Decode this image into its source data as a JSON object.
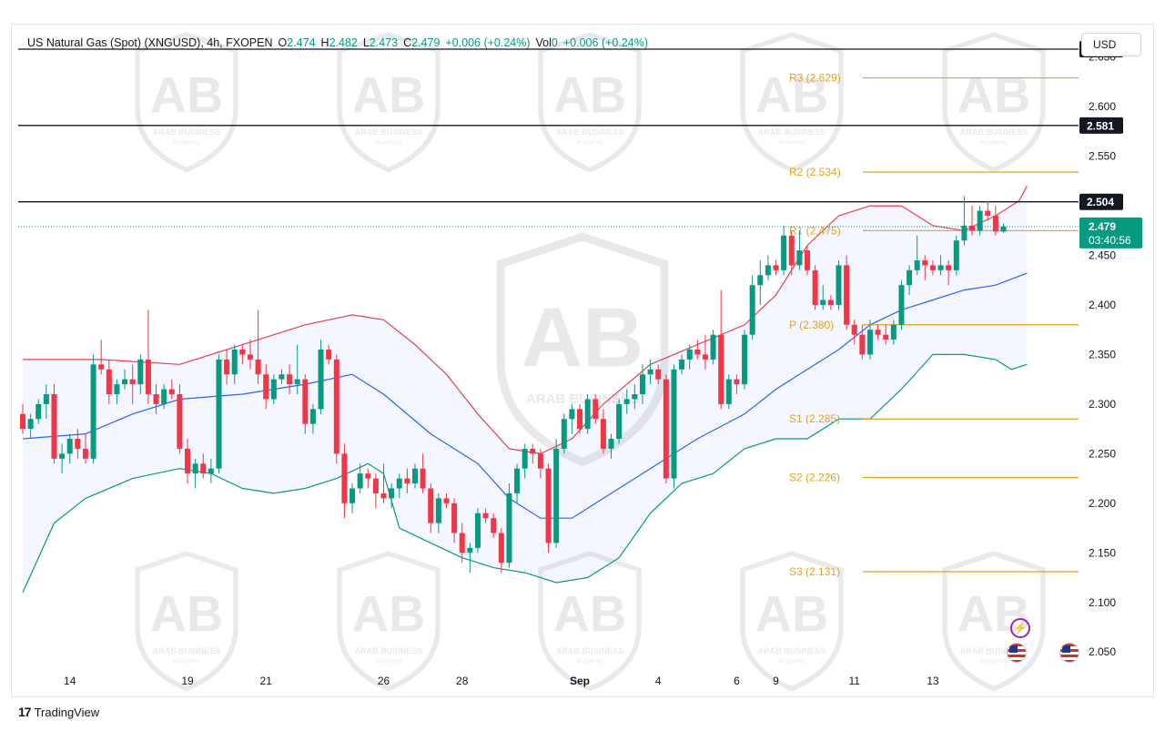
{
  "header": {
    "symbol": "US Natural Gas (Spot) (XNGUSD), 4h, FXOPEN",
    "open_label": "O",
    "open": "2.474",
    "high_label": "H",
    "high": "2.482",
    "low_label": "L",
    "low": "2.473",
    "close_label": "C",
    "close": "2.479",
    "change": "+0.006 (+0.24%)",
    "vol_label": "Vol",
    "vol": "0",
    "vol_change": "+0.006 (+0.24%)"
  },
  "currency": "USD",
  "brand": {
    "logo": "17",
    "name": "TradingView"
  },
  "colors": {
    "up": "#089981",
    "down": "#f23645",
    "bb_upper": "#e0434f",
    "bb_basis": "#2962ff",
    "bb_lower": "#089981",
    "bb_fill": "#2962ff",
    "pivot": "#e5a11f",
    "level": "#131722",
    "price_tag": "#089981"
  },
  "chart_data": {
    "type": "candlestick",
    "title": "US Natural Gas (Spot) (XNGUSD), 4h, FXOPEN",
    "xlabel": "",
    "ylabel": "",
    "ylim": [
      2.03,
      2.68
    ],
    "y_ticks": [
      "2.050",
      "2.100",
      "2.150",
      "2.200",
      "2.250",
      "2.300",
      "2.350",
      "2.400",
      "2.450",
      "2.500",
      "2.550",
      "2.600",
      "2.650"
    ],
    "x_ticks": [
      {
        "label": "14",
        "bar": 6
      },
      {
        "label": "19",
        "bar": 21
      },
      {
        "label": "21",
        "bar": 31
      },
      {
        "label": "26",
        "bar": 46
      },
      {
        "label": "28",
        "bar": 56
      },
      {
        "label": "Sep",
        "bar": 71,
        "bold": true
      },
      {
        "label": "4",
        "bar": 81
      },
      {
        "label": "6",
        "bar": 91
      },
      {
        "label": "9",
        "bar": 96
      },
      {
        "label": "11",
        "bar": 106
      },
      {
        "label": "13",
        "bar": 116
      }
    ],
    "candles": [
      [
        2.29,
        2.3,
        2.27,
        2.275
      ],
      [
        2.275,
        2.29,
        2.265,
        2.285
      ],
      [
        2.285,
        2.305,
        2.28,
        2.3
      ],
      [
        2.3,
        2.32,
        2.285,
        2.31
      ],
      [
        2.31,
        2.32,
        2.24,
        2.245
      ],
      [
        2.245,
        2.26,
        2.23,
        2.25
      ],
      [
        2.25,
        2.27,
        2.24,
        2.265
      ],
      [
        2.265,
        2.275,
        2.245,
        2.255
      ],
      [
        2.255,
        2.27,
        2.24,
        2.245
      ],
      [
        2.245,
        2.35,
        2.24,
        2.34
      ],
      [
        2.34,
        2.365,
        2.33,
        2.335
      ],
      [
        2.335,
        2.345,
        2.3,
        2.31
      ],
      [
        2.31,
        2.325,
        2.3,
        2.32
      ],
      [
        2.32,
        2.335,
        2.315,
        2.325
      ],
      [
        2.325,
        2.34,
        2.3,
        2.32
      ],
      [
        2.32,
        2.35,
        2.31,
        2.345
      ],
      [
        2.345,
        2.395,
        2.3,
        2.31
      ],
      [
        2.31,
        2.32,
        2.29,
        2.3
      ],
      [
        2.3,
        2.32,
        2.295,
        2.315
      ],
      [
        2.315,
        2.325,
        2.305,
        2.31
      ],
      [
        2.31,
        2.32,
        2.25,
        2.255
      ],
      [
        2.255,
        2.265,
        2.22,
        2.23
      ],
      [
        2.23,
        2.245,
        2.215,
        2.24
      ],
      [
        2.24,
        2.25,
        2.225,
        2.23
      ],
      [
        2.23,
        2.245,
        2.22,
        2.235
      ],
      [
        2.235,
        2.35,
        2.23,
        2.345
      ],
      [
        2.345,
        2.355,
        2.32,
        2.33
      ],
      [
        2.33,
        2.36,
        2.32,
        2.355
      ],
      [
        2.355,
        2.36,
        2.34,
        2.35
      ],
      [
        2.35,
        2.365,
        2.335,
        2.345
      ],
      [
        2.345,
        2.395,
        2.32,
        2.33
      ],
      [
        2.33,
        2.34,
        2.295,
        2.305
      ],
      [
        2.305,
        2.33,
        2.3,
        2.325
      ],
      [
        2.325,
        2.335,
        2.32,
        2.33
      ],
      [
        2.33,
        2.34,
        2.31,
        2.32
      ],
      [
        2.32,
        2.36,
        2.31,
        2.325
      ],
      [
        2.325,
        2.33,
        2.27,
        2.28
      ],
      [
        2.28,
        2.3,
        2.27,
        2.295
      ],
      [
        2.295,
        2.365,
        2.29,
        2.355
      ],
      [
        2.355,
        2.36,
        2.34,
        2.345
      ],
      [
        2.345,
        2.35,
        2.24,
        2.25
      ],
      [
        2.25,
        2.26,
        2.185,
        2.2
      ],
      [
        2.2,
        2.22,
        2.19,
        2.215
      ],
      [
        2.215,
        2.24,
        2.21,
        2.23
      ],
      [
        2.23,
        2.235,
        2.215,
        2.225
      ],
      [
        2.225,
        2.23,
        2.195,
        2.21
      ],
      [
        2.21,
        2.24,
        2.2,
        2.205
      ],
      [
        2.205,
        2.22,
        2.195,
        2.215
      ],
      [
        2.215,
        2.23,
        2.205,
        2.225
      ],
      [
        2.225,
        2.235,
        2.21,
        2.22
      ],
      [
        2.22,
        2.24,
        2.215,
        2.235
      ],
      [
        2.235,
        2.25,
        2.21,
        2.215
      ],
      [
        2.215,
        2.22,
        2.17,
        2.18
      ],
      [
        2.18,
        2.21,
        2.17,
        2.205
      ],
      [
        2.205,
        2.21,
        2.195,
        2.2
      ],
      [
        2.2,
        2.205,
        2.16,
        2.17
      ],
      [
        2.17,
        2.18,
        2.14,
        2.15
      ],
      [
        2.15,
        2.16,
        2.13,
        2.155
      ],
      [
        2.155,
        2.195,
        2.15,
        2.19
      ],
      [
        2.19,
        2.195,
        2.18,
        2.185
      ],
      [
        2.185,
        2.19,
        2.165,
        2.17
      ],
      [
        2.17,
        2.175,
        2.13,
        2.14
      ],
      [
        2.14,
        2.22,
        2.135,
        2.21
      ],
      [
        2.21,
        2.24,
        2.2,
        2.235
      ],
      [
        2.235,
        2.26,
        2.225,
        2.255
      ],
      [
        2.255,
        2.26,
        2.24,
        2.25
      ],
      [
        2.25,
        2.255,
        2.225,
        2.235
      ],
      [
        2.235,
        2.24,
        2.15,
        2.16
      ],
      [
        2.16,
        2.265,
        2.155,
        2.255
      ],
      [
        2.255,
        2.29,
        2.25,
        2.285
      ],
      [
        2.285,
        2.3,
        2.27,
        2.295
      ],
      [
        2.295,
        2.3,
        2.27,
        2.275
      ],
      [
        2.275,
        2.31,
        2.27,
        2.305
      ],
      [
        2.305,
        2.31,
        2.28,
        2.285
      ],
      [
        2.285,
        2.295,
        2.25,
        2.255
      ],
      [
        2.255,
        2.27,
        2.245,
        2.265
      ],
      [
        2.265,
        2.305,
        2.26,
        2.3
      ],
      [
        2.3,
        2.315,
        2.29,
        2.305
      ],
      [
        2.305,
        2.32,
        2.295,
        2.31
      ],
      [
        2.31,
        2.34,
        2.3,
        2.33
      ],
      [
        2.33,
        2.345,
        2.32,
        2.335
      ],
      [
        2.335,
        2.34,
        2.32,
        2.325
      ],
      [
        2.325,
        2.33,
        2.22,
        2.225
      ],
      [
        2.225,
        2.34,
        2.215,
        2.335
      ],
      [
        2.335,
        2.35,
        2.33,
        2.345
      ],
      [
        2.345,
        2.36,
        2.335,
        2.355
      ],
      [
        2.355,
        2.365,
        2.345,
        2.35
      ],
      [
        2.35,
        2.37,
        2.335,
        2.345
      ],
      [
        2.345,
        2.375,
        2.34,
        2.37
      ],
      [
        2.37,
        2.415,
        2.295,
        2.3
      ],
      [
        2.3,
        2.33,
        2.295,
        2.325
      ],
      [
        2.325,
        2.33,
        2.31,
        2.32
      ],
      [
        2.32,
        2.375,
        2.315,
        2.37
      ],
      [
        2.37,
        2.43,
        2.365,
        2.42
      ],
      [
        2.42,
        2.445,
        2.4,
        2.43
      ],
      [
        2.43,
        2.45,
        2.425,
        2.44
      ],
      [
        2.44,
        2.445,
        2.43,
        2.435
      ],
      [
        2.435,
        2.48,
        2.43,
        2.47
      ],
      [
        2.47,
        2.475,
        2.43,
        2.44
      ],
      [
        2.44,
        2.475,
        2.435,
        2.455
      ],
      [
        2.455,
        2.46,
        2.43,
        2.435
      ],
      [
        2.435,
        2.44,
        2.395,
        2.4
      ],
      [
        2.4,
        2.42,
        2.395,
        2.405
      ],
      [
        2.405,
        2.41,
        2.395,
        2.4
      ],
      [
        2.4,
        2.445,
        2.395,
        2.44
      ],
      [
        2.44,
        2.45,
        2.375,
        2.38
      ],
      [
        2.38,
        2.385,
        2.36,
        2.37
      ],
      [
        2.37,
        2.38,
        2.345,
        2.35
      ],
      [
        2.35,
        2.385,
        2.345,
        2.375
      ],
      [
        2.375,
        2.38,
        2.365,
        2.37
      ],
      [
        2.37,
        2.38,
        2.36,
        2.365
      ],
      [
        2.365,
        2.385,
        2.36,
        2.38
      ],
      [
        2.38,
        2.425,
        2.375,
        2.42
      ],
      [
        2.42,
        2.44,
        2.41,
        2.435
      ],
      [
        2.435,
        2.47,
        2.43,
        2.445
      ],
      [
        2.445,
        2.45,
        2.425,
        2.44
      ],
      [
        2.44,
        2.445,
        2.43,
        2.435
      ],
      [
        2.435,
        2.45,
        2.43,
        2.44
      ],
      [
        2.44,
        2.445,
        2.42,
        2.435
      ],
      [
        2.435,
        2.47,
        2.43,
        2.465
      ],
      [
        2.465,
        2.51,
        2.46,
        2.48
      ],
      [
        2.48,
        2.5,
        2.47,
        2.475
      ],
      [
        2.475,
        2.5,
        2.47,
        2.495
      ],
      [
        2.495,
        2.505,
        2.485,
        2.49
      ],
      [
        2.49,
        2.5,
        2.47,
        2.474
      ],
      [
        2.474,
        2.482,
        2.473,
        2.479
      ]
    ],
    "bollinger": {
      "upper": [
        [
          0,
          2.345
        ],
        [
          10,
          2.345
        ],
        [
          20,
          2.34
        ],
        [
          28,
          2.36
        ],
        [
          36,
          2.38
        ],
        [
          42,
          2.39
        ],
        [
          46,
          2.385
        ],
        [
          50,
          2.36
        ],
        [
          54,
          2.33
        ],
        [
          58,
          2.29
        ],
        [
          62,
          2.255
        ],
        [
          66,
          2.25
        ],
        [
          70,
          2.265
        ],
        [
          74,
          2.3
        ],
        [
          80,
          2.34
        ],
        [
          86,
          2.36
        ],
        [
          92,
          2.38
        ],
        [
          96,
          2.41
        ],
        [
          100,
          2.46
        ],
        [
          104,
          2.49
        ],
        [
          108,
          2.5
        ],
        [
          112,
          2.5
        ],
        [
          116,
          2.48
        ],
        [
          120,
          2.475
        ],
        [
          124,
          2.49
        ],
        [
          127,
          2.505
        ],
        [
          128,
          2.52
        ]
      ],
      "basis": [
        [
          0,
          2.265
        ],
        [
          8,
          2.27
        ],
        [
          14,
          2.29
        ],
        [
          20,
          2.305
        ],
        [
          28,
          2.31
        ],
        [
          36,
          2.32
        ],
        [
          42,
          2.33
        ],
        [
          46,
          2.31
        ],
        [
          52,
          2.27
        ],
        [
          58,
          2.24
        ],
        [
          62,
          2.205
        ],
        [
          66,
          2.185
        ],
        [
          70,
          2.185
        ],
        [
          74,
          2.205
        ],
        [
          80,
          2.235
        ],
        [
          86,
          2.265
        ],
        [
          92,
          2.29
        ],
        [
          96,
          2.315
        ],
        [
          100,
          2.335
        ],
        [
          104,
          2.355
        ],
        [
          108,
          2.38
        ],
        [
          112,
          2.395
        ],
        [
          116,
          2.405
        ],
        [
          120,
          2.415
        ],
        [
          124,
          2.42
        ],
        [
          128,
          2.432
        ]
      ],
      "lower": [
        [
          0,
          2.11
        ],
        [
          4,
          2.18
        ],
        [
          8,
          2.205
        ],
        [
          14,
          2.225
        ],
        [
          20,
          2.235
        ],
        [
          24,
          2.23
        ],
        [
          28,
          2.215
        ],
        [
          32,
          2.21
        ],
        [
          36,
          2.215
        ],
        [
          40,
          2.225
        ],
        [
          44,
          2.24
        ],
        [
          46,
          2.23
        ],
        [
          48,
          2.175
        ],
        [
          52,
          2.16
        ],
        [
          56,
          2.145
        ],
        [
          60,
          2.135
        ],
        [
          64,
          2.13
        ],
        [
          68,
          2.12
        ],
        [
          72,
          2.125
        ],
        [
          76,
          2.145
        ],
        [
          80,
          2.19
        ],
        [
          84,
          2.22
        ],
        [
          88,
          2.23
        ],
        [
          92,
          2.255
        ],
        [
          96,
          2.265
        ],
        [
          100,
          2.265
        ],
        [
          104,
          2.285
        ],
        [
          108,
          2.285
        ],
        [
          112,
          2.315
        ],
        [
          116,
          2.35
        ],
        [
          120,
          2.35
        ],
        [
          124,
          2.345
        ],
        [
          126,
          2.335
        ],
        [
          128,
          2.34
        ]
      ]
    },
    "pivots": [
      {
        "label": "R3 (2.629)",
        "value": 2.629
      },
      {
        "label": "R2 (2.534)",
        "value": 2.534
      },
      {
        "label": "R1 (2.475)",
        "value": 2.475
      },
      {
        "label": "P (2.380)",
        "value": 2.38
      },
      {
        "label": "S1 (2.285)",
        "value": 2.285
      },
      {
        "label": "S2 (2.226)",
        "value": 2.226
      },
      {
        "label": "S3 (2.131)",
        "value": 2.131
      }
    ],
    "levels": [
      {
        "label": "2.658",
        "value": 2.658
      },
      {
        "label": "2.581",
        "value": 2.581
      },
      {
        "label": "2.504",
        "value": 2.504
      }
    ],
    "current_price": {
      "value": 2.479,
      "label": "2.479",
      "countdown": "03:40:56"
    }
  },
  "watermark": {
    "text": "ARAB BUSINESS",
    "sub": "Academy",
    "initials": "AB"
  }
}
